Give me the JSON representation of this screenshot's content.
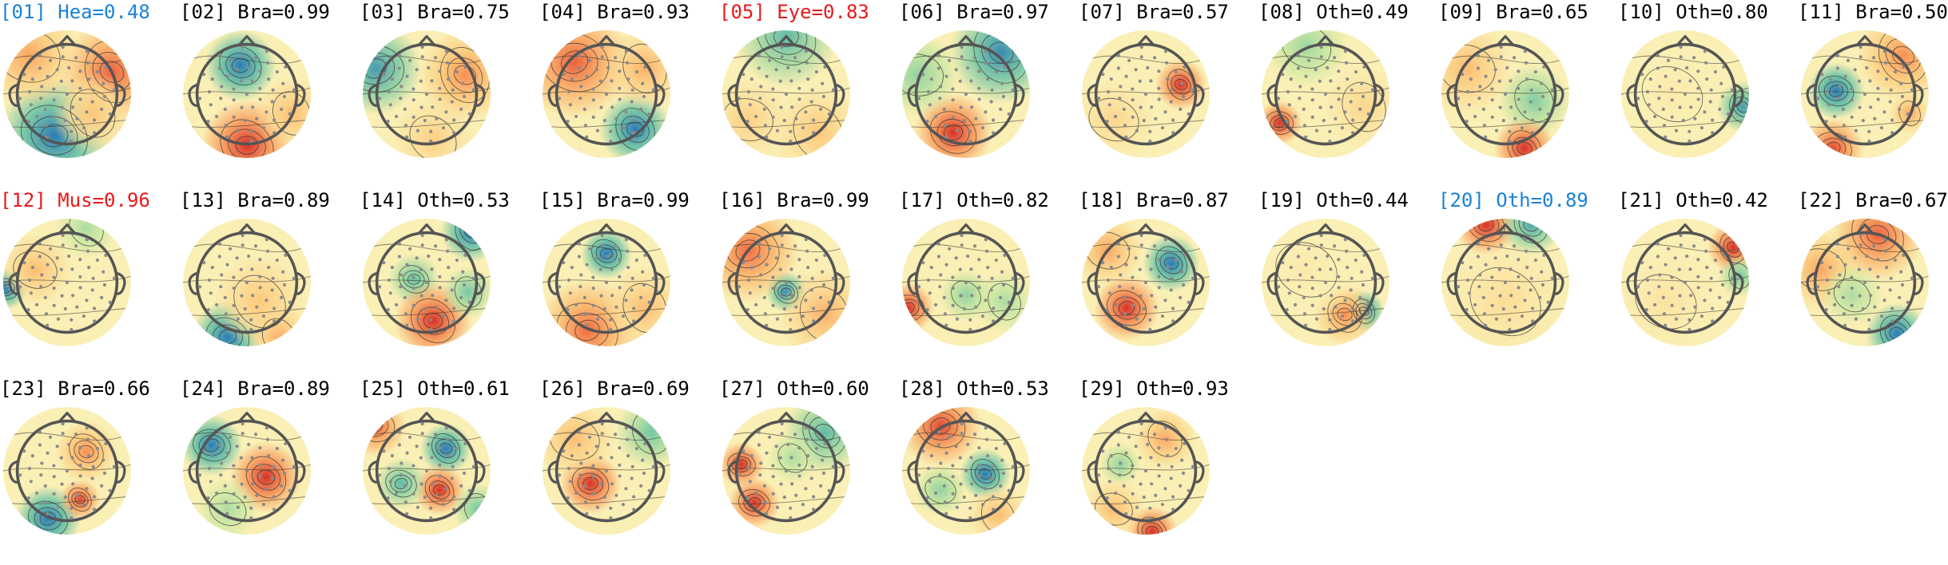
{
  "components": [
    {
      "label": "[01] Hea=0.48",
      "color": "#1a82d8",
      "blobs": [
        {
          "fx": -0.2,
          "fy": 0.65,
          "r": 0.55,
          "v": -1
        },
        {
          "fx": 0.7,
          "fy": -0.35,
          "r": 0.5,
          "v": 0.8
        },
        {
          "fx": 0.4,
          "fy": 0.3,
          "r": 0.4,
          "v": 0.35
        },
        {
          "fx": -0.6,
          "fy": -0.6,
          "r": 0.5,
          "v": 0.5
        }
      ]
    },
    {
      "label": "[02] Bra=0.99",
      "color": "#000000",
      "blobs": [
        {
          "fx": -0.1,
          "fy": -0.45,
          "r": 0.35,
          "v": -1
        },
        {
          "fx": 0.0,
          "fy": 0.8,
          "r": 0.45,
          "v": 1
        },
        {
          "fx": 0.7,
          "fy": 0.3,
          "r": 0.35,
          "v": 0.4
        }
      ]
    },
    {
      "label": "[03] Bra=0.75",
      "color": "#000000",
      "blobs": [
        {
          "fx": -0.8,
          "fy": -0.4,
          "r": 0.45,
          "v": -0.8
        },
        {
          "fx": 0.6,
          "fy": -0.3,
          "r": 0.45,
          "v": 0.6
        },
        {
          "fx": 0.1,
          "fy": 0.7,
          "r": 0.4,
          "v": 0.3
        }
      ]
    },
    {
      "label": "[04] Bra=0.93",
      "color": "#000000",
      "blobs": [
        {
          "fx": 0.45,
          "fy": 0.55,
          "r": 0.35,
          "v": -1
        },
        {
          "fx": -0.5,
          "fy": -0.5,
          "r": 0.55,
          "v": 0.8
        },
        {
          "fx": 0.6,
          "fy": -0.4,
          "r": 0.4,
          "v": 0.45
        }
      ]
    },
    {
      "label": "[05] Eye=0.83",
      "color": "#e8191b",
      "blobs": [
        {
          "fx": 0.0,
          "fy": -0.9,
          "r": 0.5,
          "v": -0.6
        },
        {
          "fx": 0.5,
          "fy": 0.6,
          "r": 0.45,
          "v": 0.35
        },
        {
          "fx": -0.6,
          "fy": 0.4,
          "r": 0.4,
          "v": 0.3
        }
      ]
    },
    {
      "label": "[06] Bra=0.97",
      "color": "#000000",
      "blobs": [
        {
          "fx": -0.2,
          "fy": 0.6,
          "r": 0.38,
          "v": 1
        },
        {
          "fx": 0.55,
          "fy": -0.65,
          "r": 0.5,
          "v": -0.9
        },
        {
          "fx": -0.75,
          "fy": -0.3,
          "r": 0.4,
          "v": -0.4
        }
      ]
    },
    {
      "label": "[07] Bra=0.57",
      "color": "#000000",
      "blobs": [
        {
          "fx": 0.55,
          "fy": -0.15,
          "r": 0.25,
          "v": 1
        },
        {
          "fx": -0.5,
          "fy": 0.4,
          "r": 0.4,
          "v": 0.25
        }
      ]
    },
    {
      "label": "[08] Oth=0.49",
      "color": "#000000",
      "blobs": [
        {
          "fx": -0.72,
          "fy": 0.45,
          "r": 0.22,
          "v": 1
        },
        {
          "fx": -0.3,
          "fy": -0.75,
          "r": 0.4,
          "v": -0.35
        },
        {
          "fx": 0.6,
          "fy": 0.2,
          "r": 0.4,
          "v": 0.25
        }
      ]
    },
    {
      "label": "[09] Bra=0.65",
      "color": "#000000",
      "blobs": [
        {
          "fx": 0.45,
          "fy": 0.1,
          "r": 0.35,
          "v": -0.45
        },
        {
          "fx": 0.3,
          "fy": 0.85,
          "r": 0.3,
          "v": 1
        },
        {
          "fx": -0.6,
          "fy": -0.4,
          "r": 0.45,
          "v": 0.4
        }
      ]
    },
    {
      "label": "[10] Oth=0.80",
      "color": "#000000",
      "blobs": [
        {
          "fx": 0.9,
          "fy": 0.2,
          "r": 0.25,
          "v": -0.8
        },
        {
          "fx": -0.2,
          "fy": 0.0,
          "r": 0.5,
          "v": 0.1
        }
      ]
    },
    {
      "label": "[11] Bra=0.50",
      "color": "#000000",
      "blobs": [
        {
          "fx": -0.45,
          "fy": -0.05,
          "r": 0.28,
          "v": -1
        },
        {
          "fx": -0.5,
          "fy": 0.85,
          "r": 0.3,
          "v": 0.9
        },
        {
          "fx": 0.6,
          "fy": -0.6,
          "r": 0.45,
          "v": 0.6
        },
        {
          "fx": 0.7,
          "fy": 0.3,
          "r": 0.2,
          "v": 0.5
        }
      ]
    },
    {
      "label": "[12] Mus=0.96",
      "color": "#e8191b",
      "blobs": [
        {
          "fx": -0.95,
          "fy": 0.1,
          "r": 0.2,
          "v": -1
        },
        {
          "fx": -0.5,
          "fy": -0.2,
          "r": 0.35,
          "v": 0.4
        },
        {
          "fx": 0.3,
          "fy": -0.85,
          "r": 0.3,
          "v": -0.3
        }
      ]
    },
    {
      "label": "[13] Bra=0.89",
      "color": "#000000",
      "blobs": [
        {
          "fx": -0.3,
          "fy": 0.85,
          "r": 0.35,
          "v": -1
        },
        {
          "fx": 0.2,
          "fy": 0.3,
          "r": 0.45,
          "v": 0.35
        },
        {
          "fx": 0.5,
          "fy": 0.85,
          "r": 0.3,
          "v": 0.45
        }
      ]
    },
    {
      "label": "[14] Oth=0.53",
      "color": "#000000",
      "blobs": [
        {
          "fx": -0.2,
          "fy": -0.05,
          "r": 0.25,
          "v": -0.55
        },
        {
          "fx": 0.1,
          "fy": 0.6,
          "r": 0.38,
          "v": 1
        },
        {
          "fx": 0.7,
          "fy": -0.8,
          "r": 0.3,
          "v": -1
        },
        {
          "fx": 0.65,
          "fy": 0.15,
          "r": 0.25,
          "v": -0.5
        }
      ]
    },
    {
      "label": "[15] Bra=0.99",
      "color": "#000000",
      "blobs": [
        {
          "fx": 0.0,
          "fy": -0.45,
          "r": 0.25,
          "v": -1
        },
        {
          "fx": -0.3,
          "fy": 0.75,
          "r": 0.5,
          "v": 0.75
        },
        {
          "fx": 0.6,
          "fy": 0.4,
          "r": 0.4,
          "v": 0.4
        }
      ]
    },
    {
      "label": "[16] Bra=0.99",
      "color": "#000000",
      "blobs": [
        {
          "fx": 0.0,
          "fy": 0.15,
          "r": 0.2,
          "v": -0.9
        },
        {
          "fx": -0.6,
          "fy": -0.5,
          "r": 0.5,
          "v": 0.75
        },
        {
          "fx": 0.6,
          "fy": 0.5,
          "r": 0.45,
          "v": 0.45
        }
      ]
    },
    {
      "label": "[17] Oth=0.82",
      "color": "#000000",
      "blobs": [
        {
          "fx": -0.9,
          "fy": 0.4,
          "r": 0.25,
          "v": 1
        },
        {
          "fx": 0.0,
          "fy": 0.2,
          "r": 0.25,
          "v": -0.4
        },
        {
          "fx": 0.6,
          "fy": 0.3,
          "r": 0.3,
          "v": -0.3
        }
      ]
    },
    {
      "label": "[18] Bra=0.87",
      "color": "#000000",
      "blobs": [
        {
          "fx": 0.4,
          "fy": -0.3,
          "r": 0.28,
          "v": -1
        },
        {
          "fx": -0.3,
          "fy": 0.4,
          "r": 0.32,
          "v": 1
        },
        {
          "fx": -0.6,
          "fy": -0.5,
          "r": 0.35,
          "v": 0.5
        }
      ]
    },
    {
      "label": "[19] Oth=0.44",
      "color": "#000000",
      "blobs": [
        {
          "fx": 0.6,
          "fy": 0.45,
          "r": 0.2,
          "v": -1
        },
        {
          "fx": 0.3,
          "fy": 0.5,
          "r": 0.3,
          "v": 0.6
        },
        {
          "fx": -0.3,
          "fy": -0.2,
          "r": 0.5,
          "v": 0.1
        }
      ]
    },
    {
      "label": "[20] Oth=0.89",
      "color": "#1a82d8",
      "blobs": [
        {
          "fx": -0.3,
          "fy": -0.9,
          "r": 0.3,
          "v": 1
        },
        {
          "fx": 0.4,
          "fy": -0.9,
          "r": 0.3,
          "v": -0.7
        },
        {
          "fx": 0.0,
          "fy": 0.3,
          "r": 0.6,
          "v": 0.2
        }
      ]
    },
    {
      "label": "[21] Oth=0.42",
      "color": "#000000",
      "blobs": [
        {
          "fx": 0.75,
          "fy": -0.55,
          "r": 0.25,
          "v": 1
        },
        {
          "fx": 0.85,
          "fy": -0.1,
          "r": 0.2,
          "v": -0.5
        },
        {
          "fx": -0.3,
          "fy": 0.3,
          "r": 0.5,
          "v": 0.15
        }
      ]
    },
    {
      "label": "[22] Bra=0.67",
      "color": "#000000",
      "blobs": [
        {
          "fx": 0.5,
          "fy": 0.8,
          "r": 0.3,
          "v": -1
        },
        {
          "fx": 0.2,
          "fy": -0.75,
          "r": 0.45,
          "v": 0.8
        },
        {
          "fx": -0.7,
          "fy": -0.2,
          "r": 0.4,
          "v": 0.5
        },
        {
          "fx": -0.2,
          "fy": 0.2,
          "r": 0.3,
          "v": -0.3
        }
      ]
    },
    {
      "label": "[23] Bra=0.66",
      "color": "#000000",
      "blobs": [
        {
          "fx": -0.3,
          "fy": 0.75,
          "r": 0.32,
          "v": -1
        },
        {
          "fx": 0.2,
          "fy": 0.45,
          "r": 0.2,
          "v": 0.9
        },
        {
          "fx": 0.3,
          "fy": -0.3,
          "r": 0.3,
          "v": 0.6
        }
      ]
    },
    {
      "label": "[24] Bra=0.89",
      "color": "#000000",
      "blobs": [
        {
          "fx": -0.55,
          "fy": -0.4,
          "r": 0.3,
          "v": -1
        },
        {
          "fx": 0.3,
          "fy": 0.1,
          "r": 0.35,
          "v": 1
        },
        {
          "fx": -0.3,
          "fy": 0.6,
          "r": 0.3,
          "v": -0.3
        }
      ]
    },
    {
      "label": "[25] Oth=0.61",
      "color": "#000000",
      "blobs": [
        {
          "fx": 0.3,
          "fy": -0.35,
          "r": 0.25,
          "v": -1
        },
        {
          "fx": 0.2,
          "fy": 0.3,
          "r": 0.25,
          "v": 1
        },
        {
          "fx": -0.4,
          "fy": 0.2,
          "r": 0.25,
          "v": -0.6
        },
        {
          "fx": -0.8,
          "fy": -0.7,
          "r": 0.3,
          "v": 0.8
        },
        {
          "fx": 0.8,
          "fy": 0.6,
          "r": 0.25,
          "v": -0.5
        }
      ]
    },
    {
      "label": "[26] Bra=0.69",
      "color": "#000000",
      "blobs": [
        {
          "fx": -0.25,
          "fy": 0.2,
          "r": 0.3,
          "v": 1
        },
        {
          "fx": 0.7,
          "fy": -0.6,
          "r": 0.35,
          "v": -0.5
        },
        {
          "fx": -0.5,
          "fy": -0.5,
          "r": 0.4,
          "v": 0.4
        }
      ]
    },
    {
      "label": "[27] Oth=0.60",
      "color": "#000000",
      "blobs": [
        {
          "fx": -0.7,
          "fy": -0.1,
          "r": 0.22,
          "v": 1
        },
        {
          "fx": -0.5,
          "fy": 0.5,
          "r": 0.25,
          "v": 1
        },
        {
          "fx": 0.6,
          "fy": -0.6,
          "r": 0.4,
          "v": -0.6
        },
        {
          "fx": 0.1,
          "fy": -0.2,
          "r": 0.25,
          "v": -0.3
        }
      ]
    },
    {
      "label": "[28] Oth=0.53",
      "color": "#000000",
      "blobs": [
        {
          "fx": 0.3,
          "fy": 0.05,
          "r": 0.25,
          "v": -1
        },
        {
          "fx": -0.4,
          "fy": -0.7,
          "r": 0.4,
          "v": 0.9
        },
        {
          "fx": -0.4,
          "fy": 0.3,
          "r": 0.25,
          "v": -0.4
        },
        {
          "fx": 0.5,
          "fy": 0.7,
          "r": 0.3,
          "v": 0.4
        }
      ]
    },
    {
      "label": "[29] Oth=0.93",
      "color": "#000000",
      "blobs": [
        {
          "fx": 0.1,
          "fy": 0.95,
          "r": 0.25,
          "v": 1
        },
        {
          "fx": -0.4,
          "fy": -0.1,
          "r": 0.2,
          "v": -0.4
        },
        {
          "fx": 0.3,
          "fy": -0.5,
          "r": 0.3,
          "v": 0.5
        },
        {
          "fx": -0.5,
          "fy": 0.6,
          "r": 0.3,
          "v": 0.4
        }
      ]
    }
  ]
}
